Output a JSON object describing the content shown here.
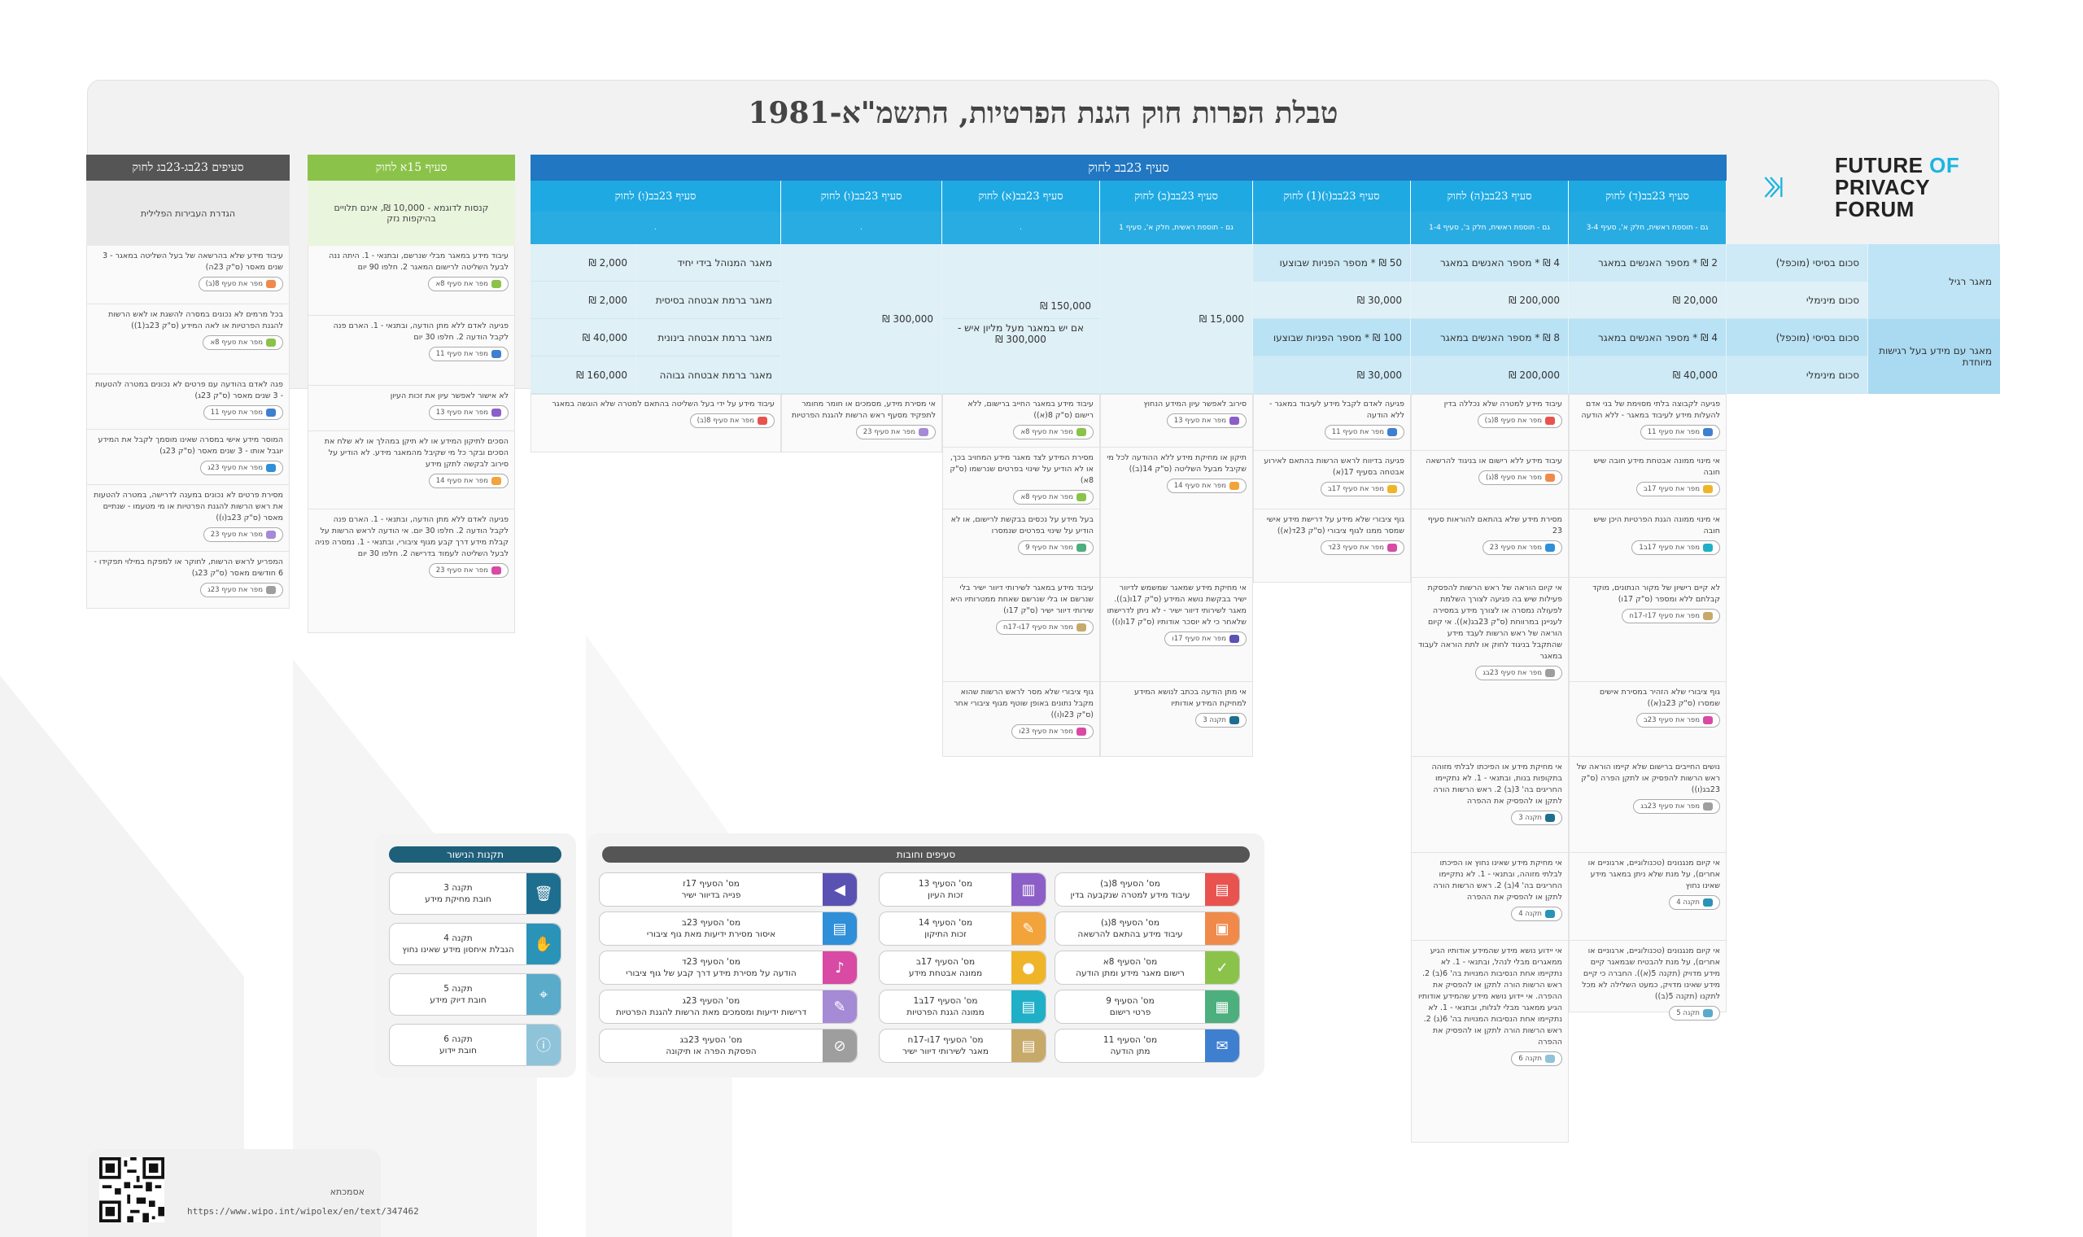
{
  "title": "טבלת הפרות חוק הגנת הפרטיות, התשמ\"א-1981",
  "logo": {
    "line1": "FUTURE",
    "line1b": "OF",
    "line2": "PRIVACY",
    "line3": "FORUM"
  },
  "main_header": "סעיף 23בב לחוק",
  "columns": [
    {
      "label": "סעיף 23בב(ד) לחוק",
      "sub": "גם - תוספת ראשית, חלק א', סעיף 3-4"
    },
    {
      "label": "סעיף 23בב(ה) לחוק",
      "sub": "גם - תוספת ראשית, חלק ב', סעיף 1-4"
    },
    {
      "label": "סעיף 23בב(ו)(1) לחוק",
      "sub": ""
    },
    {
      "label": "סעיף 23בב(ב) לחוק",
      "sub": "גם - תוספת ראשית, חלק א', סעיף 1"
    },
    {
      "label": "סעיף 23בב(א) לחוק",
      "sub": "."
    },
    {
      "label": "סעיף 23בב(ו) לחוק",
      "sub": "."
    },
    {
      "label": "סעיף 23בב(ו) לחוק",
      "sub": "."
    }
  ],
  "rows": {
    "regular": "מאגר רגיל",
    "special": "מאגר עם מידע בעל רגישות מיוחדת",
    "base": "סכום בסיסי (מוכפל)",
    "min": "סכום מינימלי"
  },
  "values": {
    "r1": [
      "2 ₪ * מספר האנשים במאגר",
      "4 ₪ * מספר האנשים במאגר",
      "50 ₪ * מספר הפניות שבוצעו"
    ],
    "r2": [
      "20,000 ₪",
      "200,000 ₪",
      "30,000 ₪"
    ],
    "r3": [
      "4 ₪ * מספר האנשים במאגר",
      "8 ₪ * מספר האנשים במאגר",
      "100 ₪ * מספר הפניות שבוצעו"
    ],
    "r4": [
      "40,000 ₪",
      "200,000 ₪",
      "30,000 ₪"
    ],
    "col_b": "15,000 ₪",
    "col_a1": "150,000 ₪",
    "col_a2": "אם יש במאגר מעל מליון איש - 300,000 ₪",
    "col_v": "300,000 ₪",
    "sub_rows": [
      {
        "label": "מאגר המנוהל בידי יחיד",
        "value": "2,000 ₪"
      },
      {
        "label": "מאגר ברמת אבטחה בסיסית",
        "value": "2,000 ₪"
      },
      {
        "label": "מאגר ברמת אבטחה בינונית",
        "value": "40,000 ₪"
      },
      {
        "label": "מאגר ברמת אבטחה גבוהה",
        "value": "160,000 ₪"
      }
    ]
  },
  "notes": {
    "c1": [
      {
        "text": "פגיעה לקבוצה בלתי מסוימת של בני אדם להעלות מידע לעיבוד במאגר - ללא הודעה",
        "pill": "מפר את סעיף 11"
      },
      {
        "text": "אי מינוי ממונה אבטחת מידע חובה שיש חובה",
        "pill": "מפר את סעיף 17ב"
      },
      {
        "text": "אי מינוי ממונה הגנת הפרטיות היכן שיש חובה",
        "pill": "מפר את סעיף 17ב1"
      },
      {
        "text": "לא קיים רישיון של מקור הנתונים, מוקד קבלתם ללא ומספר (ס\"ק 17ו)",
        "pill": "מפר את סעיף 17ז-17ח"
      },
      {
        "text": "גוף ציבורי שלא הזהיר במסירת אישים שמסרו (ס\"ק 23ב(א))",
        "pill": "מפר את סעיף 23ב"
      },
      {
        "text": "נושים החייבים ברישום שלא קיימו הוראה של ראש הרשות להפסיק או לתקן הפרה (ס\"ק 23בג(ו))",
        "pill": "מפר את סעיף 23בג"
      },
      {
        "text": "אי קיום מנגנונים (טכנולוגיים, ארגוניים או אחרים), על מנת שלא ניתן במאגר מידע שאינו נחוץ",
        "pill": "תקנה 4"
      },
      {
        "text": "אי קיום מנגנונים (טכנולוגיים, ארגוניים או אחרים), על מנת להבטיח שבמאגר קיים מידע מדויק (תקנה 5(א)). החברה כי קיים מידע שאינו מדויק, כמעט השלילה לא מכל לתקנו (תקנה 5(ב))",
        "pill": "תקנה 5"
      }
    ],
    "c2": [
      {
        "text": "עיבוד מידע למטרה שלא נכללה בדין",
        "pill": "מפר את סעיף 8(ב)"
      },
      {
        "text": "עיבוד מידע ללא רישום או בניגוד להרשאה",
        "pill": "מפר את סעיף 8(ג)"
      },
      {
        "text": "מסירת מידע שלא בהתאם להוראות סעיף 23",
        "pill": "מפר את סעיף 23"
      },
      {
        "text": "אי קיום הוראה של ראש הרשות להפסקת פעילות שיש בה פגיעה לצורך השלמת לפעולה נמסרה או לצורך מידע במסירה לעניינן במרווחת (ס\"ק 23בג(א)). אי קיום הוראה של ראש הרשות לעבד מידע שהתקבל בניגוד לחוק או לתת הוראה לעבוד במאגר",
        "pill": "מפר את סעיף 23בג"
      },
      {
        "text": "אי מחיקת מידע או הפיכתו לבלתי מזוהה בתקופות בנות, ובתנאי - 1. לא נתקיימו החריגים בה' 3(ב) 2. ראש הרשות הורה לתקן או להפסיק את ההפרה",
        "pill": "תקנה 3"
      },
      {
        "text": "אי מחיקת מידע שאינו נחוץ או הפיכתו לבלתי מזוהה, ובתנאי - 1. לא נתקיימו החריגים בה' 4(ב) 2. ראש הרשות הורה לתקן או להפסיק את ההפרה",
        "pill": "תקנה 4"
      },
      {
        "text": "אי יידוע נושא מידע שהמידע אודותיו הגיע ממאגרים מבלי לנהל, ובתנאי - 1. לא נתקיימו אחת הנסיבות המנויות בה' 6(ב) 2. ראש הרשות הורה לתקן או להפסיק את ההפרה. אי יידוע נושא מידע שהמידע אודותיו הגיע ממאגר מבלי לגלות, ובתנאי - 1. לא נתקיימו אחת הנסיבות המנויות בה' 6(ג) 2. ראש הרשות הורה לתקן או להפסיק את ההפרה",
        "pill": "תקנה 6"
      }
    ],
    "c3": [
      {
        "text": "פגיעה לאדם לקבל מידע לעיבוד במאגר - ללא הודעה",
        "pill": "מפר את סעיף 11"
      },
      {
        "text": "פגיעה בדיווח לראש הרשות בהתאם לאירוע אבטחה בסעיף 17(א)",
        "pill": "מפר את סעיף 17ב"
      },
      {
        "text": "גוף ציבורי שלא מידע על דרישת מידע אישי שמסר ממנו לגוף ציבורי (ס\"ק 23ד(א))",
        "pill": "מפר את סעיף 23ד"
      }
    ],
    "c4": [
      {
        "text": "סירוב לאפשר עיון המידע הנחוץ",
        "pill": "מפר את סעיף 13"
      },
      {
        "text": "תיקון או מחיקת מידע ללא ההודעה לכל מי שקיבל מבעל השליטה (ס\"ק 14(ב))",
        "pill": "מפר את סעיף 14"
      },
      {
        "text": "אי מחיקת מידע שמאגר שמשמש לדיוור ישיר בבקשת נושא המידע (ס\"ק 17ו(ב)). מאגר לשירותי דיוור ישיר - לא ניתן לדרישתו שלאחר כי לא יוסכר אודותיו (ס\"ק 17ו(ו))",
        "pill": "מפר את סעיף 17ו"
      },
      {
        "text": "אי מתן הודעה בכתב לנושא המידע למחיקת המידע אודותיו",
        "pill": "תקנה 3"
      }
    ],
    "c5": [
      {
        "text": "עיבוד מידע במאגר החייב ברישום, ללא רישום (ס\"ק 8(א))",
        "pill": "מפר את סעיף 8א"
      },
      {
        "text": "מסירת המידע לצד מאגר מידע המחויב בכך, או לא הודיע על שינוי בפרטים שנרשמו (ס\"ק 8א)",
        "pill": "מפר את סעיף 8א"
      },
      {
        "text": "בעל מידע על נכסים בבקשת לרישום, או לא הודיע על שינוי בפרטים שנמסרו",
        "pill": "מפר את סעיף 9"
      },
      {
        "text": "עיבוד מידע במאגר לשירותי דיוור ישיר בלי שנרשם או בלי שנרשם שאחת ממטרותיו היא שירותי דיוור ישיר (ס\"ק 17ו)",
        "pill": "מפר את סעיף 17ו-17ח"
      },
      {
        "text": "גוף ציבורי שלא מסר לראש הרשות שהוא מקבל נתונים באופן שוטף מגוף ציבורי אחר (ס\"ק 23ו(ו))",
        "pill": "מפר את סעיף 23ו"
      }
    ],
    "c6": [
      {
        "text": "אי מסירת מידע, מסמכים או חומר מחומר לתפקיד מסעף ראש הרשות להגנת הפרטיות",
        "pill": "מפר את סעיף 23"
      }
    ],
    "c7": [
      {
        "text": "עיבוד מידע על ידי בעל השליטה בהתאם למטרה שלא הוגשה במאגר",
        "pill": "מפר את סעיף 8(ב)"
      }
    ]
  },
  "green_panel": {
    "header": "סעיף 15א לחוק",
    "sub": "קנסות לדוגמא - 10,000 ₪, אינם תלויים בהיקפות נזק",
    "notes": [
      {
        "text": "עיבוד מידע במאגר מבלי שנרשם, ובתנאי - 1. היתה ננה לבעל השליטה לרישום המאגר 2. חלפו 90 יום",
        "pill": "מפר את סעיף 8א"
      },
      {
        "text": "פגיעה לאדם ללא מתן הודעה, ובתנאי - 1. הארם פנה לקבל הודעה 2. חלפו 30 יום",
        "pill": "מפר את סעיף 11"
      },
      {
        "text": "לא אישור לאפשר עיון את זכות העיון",
        "pill": "מפר את סעיף 13"
      },
      {
        "text": "הסכים לתיקון המידע או לא תיקן במהלך או לא שלח את הסכים ובקר כל מי שקיבל מהמאגר מידע. לא הודיע על סירוב לבקשה לתקן מידע",
        "pill": "מפר את סעיף 14"
      },
      {
        "text": "פגיעה לאדם ללא מתן הודעה, ובתנאי - 1. הארם פנה לקבל הודעה 2. חלפו 30 יום. אי הודעה לראש הרשות על קבלת מידע דרך קבע מגוף ציבורי, ובתנאי - 1. נמסרה פניה לבעל השליטה לעמוד בדרישה 2. חלפו 30 יום",
        "pill": "מפר את סעיף 23"
      }
    ]
  },
  "dark_panel": {
    "header": "סעיפים 23בג-23בג לחוק",
    "sub": "הגדרת העבירות הפלילית",
    "notes": [
      {
        "text": "עיבוד מידע שלא בהרשאה של בעל השליטה במאגר - 3 שנים מאסר (ס\"ק 23ה)",
        "pill": "מפר את סעיף 8(ב)"
      },
      {
        "text": "בכל מרמים לא נכונים במסרה להשגת או לאש הרשות להגנת הפרטיות או לאה המידע (ס\"ק 23ב(1))",
        "pill": "מפר את סעיף 8א"
      },
      {
        "text": "פגה לאדם בהודעה עם פרטים לא נכונים במטרה להטעות - 3 שנים מאסר (ס\"ק 23ג)",
        "pill": "מפר את סעיף 11"
      },
      {
        "text": "המוסר מידע אישי במסרה שאינו מוסמך לקבל את המידע יוגבל אותו - 3 שנים מאסר (ס\"ק 23ג)",
        "pill": "מפר את סעיף 23ג"
      },
      {
        "text": "מסירת פרטים לא נכונים במענה לדרישה, במטרה להטעות את ראש הרשות להגנת הפרטיות או מי מטעמו - שנתיים מאסר (ס\"ק 23ב(ו))",
        "pill": "מפר את סעיף 23"
      },
      {
        "text": "המפריע לראש הרשות, לחוקר או למפקח במילוי תפקידו - 6 חודשים מאסר (ס\"ק 23ג)",
        "pill": "מפר את סעיף 23ג"
      }
    ]
  },
  "legend_sections": {
    "title": "סעיפים וחובות",
    "items": [
      {
        "num": "מס' הסעיף 8(ב)",
        "desc": "עיבוד מידע למטרה שנקבעה בדין",
        "color": "#e8534f",
        "icon": "database-icon"
      },
      {
        "num": "מס' הסעיף 13",
        "desc": "זכות העיון",
        "color": "#8b5fc7",
        "icon": "document-icon"
      },
      {
        "num": "מס' הסעיף 17ז",
        "desc": "פנייה בדיוור ישיר",
        "color": "#5a52b3",
        "icon": "megaphone-icon"
      },
      {
        "num": "מס' הסעיף 8(ג)",
        "desc": "עיבוד מידע בהתאם להרשאה",
        "color": "#f08a4b",
        "icon": "lock-icon"
      },
      {
        "num": "מס' הסעיף 14",
        "desc": "זכות התיקון",
        "color": "#f2a33a",
        "icon": "edit-list-icon"
      },
      {
        "num": "מס' הסעיף 23ב",
        "desc": "איסור מסירת ידיעות מאת גוף ציבורי",
        "color": "#2f8fd8",
        "icon": "database-export-icon"
      },
      {
        "num": "מס' הסעיף 8א",
        "desc": "רישום מאגר מידע ומתן הודעה",
        "color": "#8bc34a",
        "icon": "database-check-icon"
      },
      {
        "num": "מס' הסעיף 17ב",
        "desc": "ממונה אבטחת מידע",
        "color": "#f0b429",
        "icon": "user-badge-icon"
      },
      {
        "num": "מס' הסעיף 23ד",
        "desc": "הודעה על מסירת מידע דרך קבע של גוף ציבורי",
        "color": "#d84aa3",
        "icon": "bell-icon"
      },
      {
        "num": "מס' הסעיף 9",
        "desc": "פרטי רישום",
        "color": "#4caf7d",
        "icon": "form-icon"
      },
      {
        "num": "מס' הסעיף 17ב1",
        "desc": "ממונה הגנת הפרטיות",
        "color": "#1fb0c8",
        "icon": "database-user-icon"
      },
      {
        "num": "מס' הסעיף 23ג",
        "desc": "דרישות ידיעות ומסמכים מאת הרשות להגנת הפרטיות",
        "color": "#a58ad6",
        "icon": "request-icon"
      },
      {
        "num": "מס' הסעיף 11",
        "desc": "מתן הודעה",
        "color": "#3f7fcf",
        "icon": "envelope-icon"
      },
      {
        "num": "מס' הסעיף 17ו-17ח",
        "desc": "מאגר לשירותי דיוור ישיר",
        "color": "#c7a96a",
        "icon": "database-list-icon"
      },
      {
        "num": "מס' הסעיף 23בג",
        "desc": "הפסקת הפרה או תיקונה",
        "color": "#9e9e9e",
        "icon": "ban-icon"
      }
    ]
  },
  "legend_regs": {
    "title": "תקנות הנישור",
    "items": [
      {
        "num": "תקנה 3",
        "desc": "חובת מחיקת מידע",
        "color": "#1e6f8f",
        "icon": "trash-icon"
      },
      {
        "num": "תקנה 4",
        "desc": "הגבלת איחסון מידע שאינו נחוץ",
        "color": "#2a93b8",
        "icon": "hand-icon"
      },
      {
        "num": "תקנה 5",
        "desc": "חובת דיוק מידע",
        "color": "#5aabc9",
        "icon": "target-icon"
      },
      {
        "num": "תקנה 6",
        "desc": "חובת יידוע",
        "color": "#8fc3d9",
        "icon": "info-icon"
      }
    ]
  },
  "reference": {
    "label": "אסמכתא",
    "url": "https://www.wipo.int/wipolex/en/text/347462"
  },
  "colors": {
    "header_dark": "#2177c1",
    "header_light": "#1fa9e2",
    "green": "#8bc34a",
    "dark_gray": "#555555"
  }
}
